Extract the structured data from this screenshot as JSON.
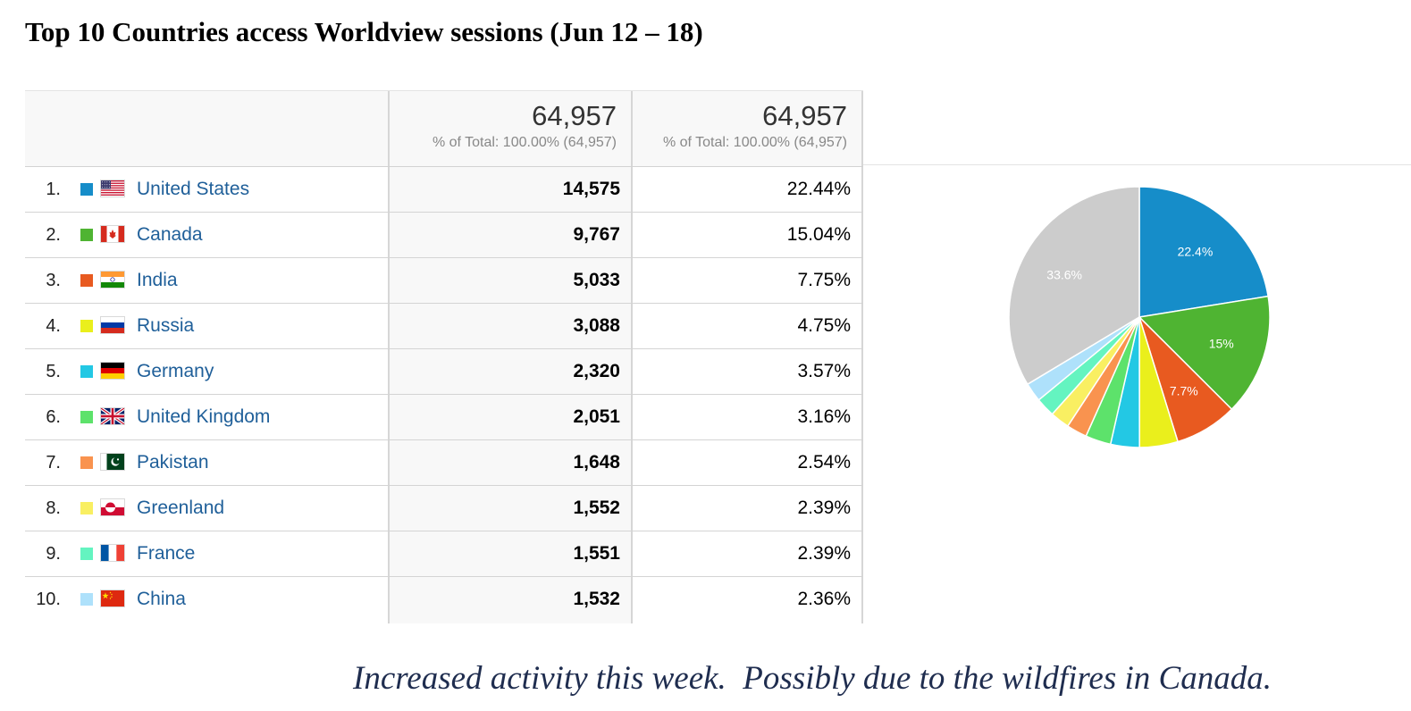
{
  "title": "Top 10 Countries access Worldview sessions (Jun 12 – 18)",
  "header": {
    "col1": {
      "value": "64,957",
      "sub": "% of Total: 100.00% (64,957)"
    },
    "col2": {
      "value": "64,957",
      "sub": "% of Total: 100.00% (64,957)"
    }
  },
  "rows": [
    {
      "rank": "1.",
      "country": "United States",
      "flag": "us-flag",
      "color": "#168dc9",
      "sessions": "14,575",
      "percent": "22.44%"
    },
    {
      "rank": "2.",
      "country": "Canada",
      "flag": "ca-flag",
      "color": "#4fb432",
      "sessions": "9,767",
      "percent": "15.04%"
    },
    {
      "rank": "3.",
      "country": "India",
      "flag": "in-flag",
      "color": "#e85a20",
      "sessions": "5,033",
      "percent": "7.75%"
    },
    {
      "rank": "4.",
      "country": "Russia",
      "flag": "ru-flag",
      "color": "#eaef1c",
      "sessions": "3,088",
      "percent": "4.75%"
    },
    {
      "rank": "5.",
      "country": "Germany",
      "flag": "de-flag",
      "color": "#23c8e4",
      "sessions": "2,320",
      "percent": "3.57%"
    },
    {
      "rank": "6.",
      "country": "United Kingdom",
      "flag": "gb-flag",
      "color": "#5de26b",
      "sessions": "2,051",
      "percent": "3.16%"
    },
    {
      "rank": "7.",
      "country": "Pakistan",
      "flag": "pk-flag",
      "color": "#f9934f",
      "sessions": "1,648",
      "percent": "2.54%"
    },
    {
      "rank": "8.",
      "country": "Greenland",
      "flag": "gl-flag",
      "color": "#f9ef62",
      "sessions": "1,552",
      "percent": "2.39%"
    },
    {
      "rank": "9.",
      "country": "France",
      "flag": "fr-flag",
      "color": "#64f4c0",
      "sessions": "1,551",
      "percent": "2.39%"
    },
    {
      "rank": "10.",
      "country": "China",
      "flag": "cn-flag",
      "color": "#aee1fb",
      "sessions": "1,532",
      "percent": "2.36%"
    }
  ],
  "chart_data": {
    "type": "pie",
    "categories": [
      "United States",
      "Canada",
      "India",
      "Russia",
      "Germany",
      "United Kingdom",
      "Pakistan",
      "Greenland",
      "France",
      "China",
      "(other)"
    ],
    "values": [
      22.44,
      15.04,
      7.75,
      4.75,
      3.57,
      3.16,
      2.54,
      2.39,
      2.39,
      2.36,
      33.61
    ],
    "colors": [
      "#168dc9",
      "#4fb432",
      "#e85a20",
      "#eaef1c",
      "#23c8e4",
      "#5de26b",
      "#f9934f",
      "#f9ef62",
      "#64f4c0",
      "#aee1fb",
      "#cccccc"
    ],
    "slice_labels": [
      "22.4%",
      "15%",
      "7.7%",
      "",
      "",
      "",
      "",
      "",
      "",
      "",
      "33.6%"
    ]
  },
  "note": "Increased activity this week.  Possibly due to the wildfires in Canada."
}
